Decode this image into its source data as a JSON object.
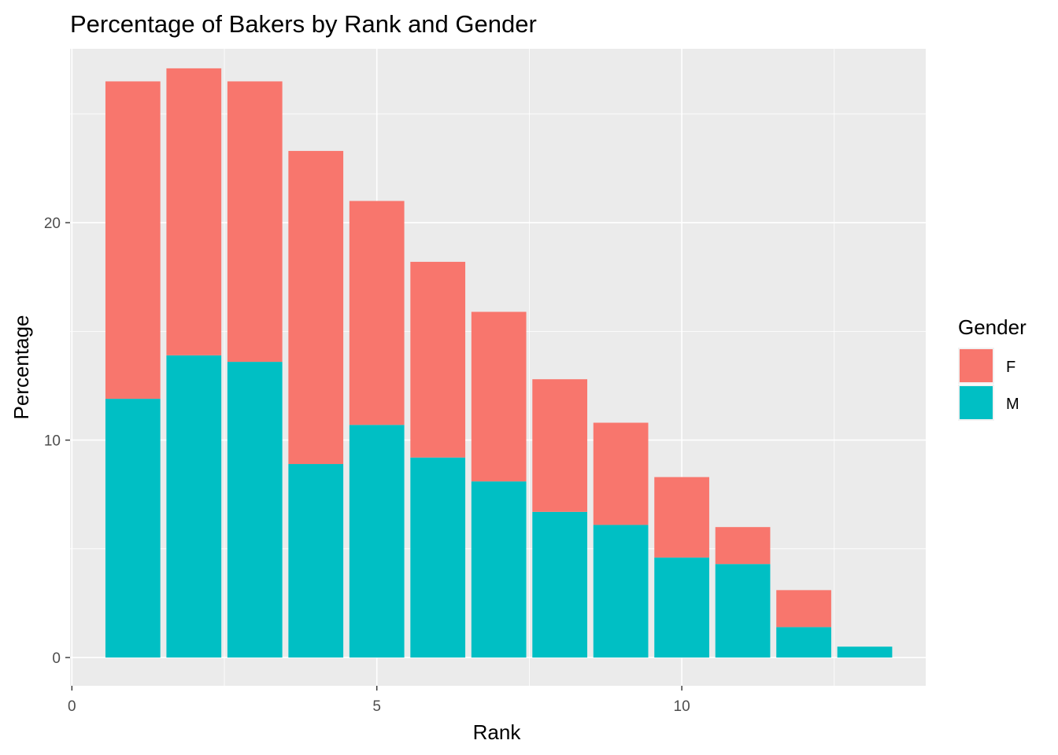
{
  "chart_data": {
    "type": "bar",
    "stacked": true,
    "title": "Percentage of Bakers by Rank and Gender",
    "xlabel": "Rank",
    "ylabel": "Percentage",
    "x": [
      1,
      2,
      3,
      4,
      5,
      6,
      7,
      8,
      9,
      10,
      11,
      12,
      13
    ],
    "series": [
      {
        "name": "M",
        "color": "#00BFC4",
        "values": [
          11.9,
          13.9,
          13.6,
          8.9,
          10.7,
          9.2,
          8.1,
          6.7,
          6.1,
          4.6,
          4.3,
          1.4,
          0.5
        ]
      },
      {
        "name": "F",
        "color": "#F8766D",
        "values": [
          14.6,
          13.2,
          12.9,
          14.4,
          10.3,
          9.0,
          7.8,
          6.1,
          4.7,
          3.7,
          1.7,
          1.7,
          0.0
        ]
      }
    ],
    "xlim": [
      -0.03,
      14.0
    ],
    "ylim": [
      -1.3,
      28.0
    ],
    "x_ticks": [
      "0",
      "5",
      "10"
    ],
    "y_ticks": [
      "0",
      "10",
      "20"
    ],
    "grid": true,
    "panel_background": "#EBEBEB",
    "legend": {
      "title": "Gender",
      "entries": [
        "F",
        "M"
      ],
      "placement": "right"
    }
  }
}
